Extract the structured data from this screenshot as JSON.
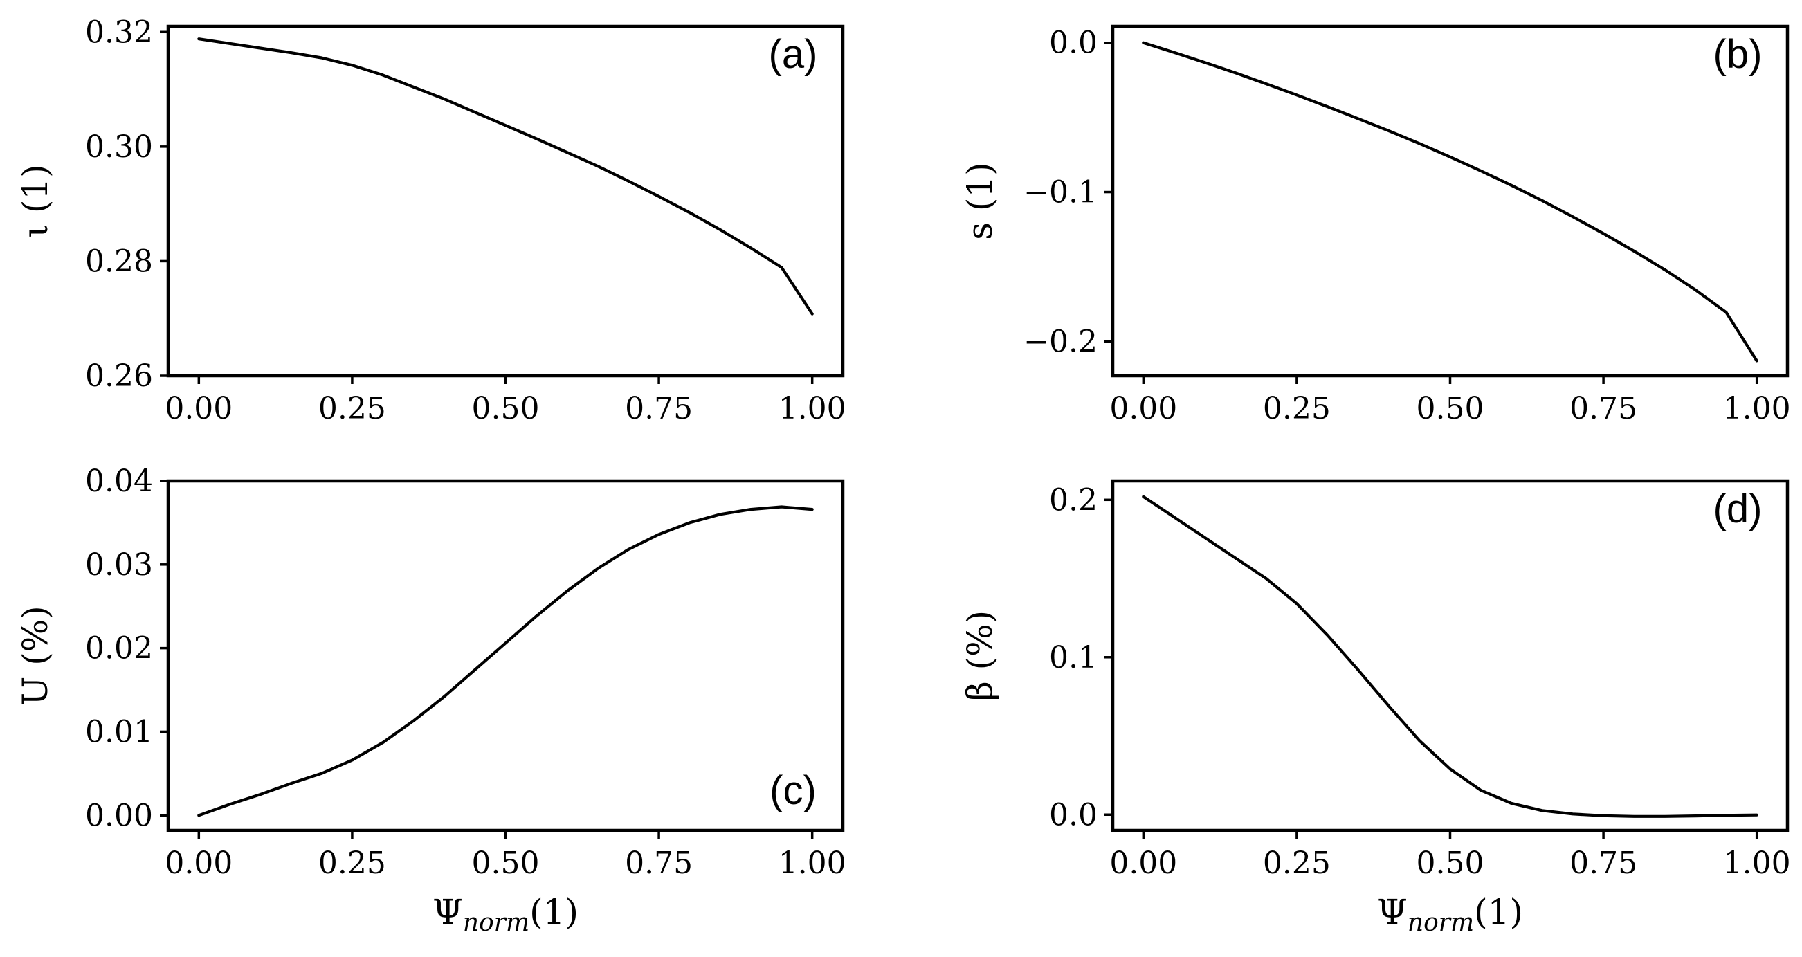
{
  "chart_data": [
    {
      "type": "line",
      "panel_label": "(a)",
      "ylabel": "ι (1)",
      "xlabel": "",
      "xlim": [
        -0.05,
        1.05
      ],
      "ylim": [
        0.26,
        0.321
      ],
      "xticks": [
        0.0,
        0.25,
        0.5,
        0.75,
        1.0
      ],
      "xtick_labels": [
        "0.00",
        "0.25",
        "0.50",
        "0.75",
        "1.00"
      ],
      "yticks": [
        0.26,
        0.28,
        0.3,
        0.32
      ],
      "ytick_labels": [
        "0.26",
        "0.28",
        "0.30",
        "0.32"
      ],
      "label_corner": "top-right",
      "x": [
        0.0,
        0.05,
        0.1,
        0.15,
        0.2,
        0.25,
        0.3,
        0.35,
        0.4,
        0.45,
        0.5,
        0.55,
        0.6,
        0.65,
        0.7,
        0.75,
        0.8,
        0.85,
        0.9,
        0.95,
        1.0
      ],
      "y": [
        0.3188,
        0.318,
        0.3172,
        0.3164,
        0.3155,
        0.3142,
        0.3125,
        0.3104,
        0.3083,
        0.306,
        0.3037,
        0.3014,
        0.299,
        0.2966,
        0.294,
        0.2913,
        0.2885,
        0.2855,
        0.2823,
        0.2789,
        0.2708
      ]
    },
    {
      "type": "line",
      "panel_label": "(b)",
      "ylabel": "s (1)",
      "xlabel": "",
      "xlim": [
        -0.05,
        1.05
      ],
      "ylim": [
        -0.223,
        0.011
      ],
      "xticks": [
        0.0,
        0.25,
        0.5,
        0.75,
        1.0
      ],
      "xtick_labels": [
        "0.00",
        "0.25",
        "0.50",
        "0.75",
        "1.00"
      ],
      "yticks": [
        0.0,
        -0.1,
        -0.2
      ],
      "ytick_labels": [
        "0.0",
        "−0.1",
        "−0.2"
      ],
      "label_corner": "top-right",
      "x": [
        0.0,
        0.05,
        0.1,
        0.15,
        0.2,
        0.25,
        0.3,
        0.35,
        0.4,
        0.45,
        0.5,
        0.55,
        0.6,
        0.65,
        0.7,
        0.75,
        0.8,
        0.85,
        0.9,
        0.95,
        1.0
      ],
      "y": [
        0.0,
        -0.0065,
        -0.0132,
        -0.0202,
        -0.0275,
        -0.035,
        -0.0428,
        -0.0508,
        -0.059,
        -0.0675,
        -0.0765,
        -0.0858,
        -0.0955,
        -0.1057,
        -0.1165,
        -0.1278,
        -0.1396,
        -0.152,
        -0.1655,
        -0.1805,
        -0.213
      ]
    },
    {
      "type": "line",
      "panel_label": "(c)",
      "ylabel": "U (%)",
      "xlabel": "Ψnorm(1)",
      "xlim": [
        -0.05,
        1.05
      ],
      "ylim": [
        -0.0018,
        0.04
      ],
      "xticks": [
        0.0,
        0.25,
        0.5,
        0.75,
        1.0
      ],
      "xtick_labels": [
        "0.00",
        "0.25",
        "0.50",
        "0.75",
        "1.00"
      ],
      "yticks": [
        0.0,
        0.01,
        0.02,
        0.03,
        0.04
      ],
      "ytick_labels": [
        "0.00",
        "0.01",
        "0.02",
        "0.03",
        "0.04"
      ],
      "label_corner": "bottom-right",
      "x": [
        0.0,
        0.05,
        0.1,
        0.15,
        0.2,
        0.25,
        0.3,
        0.35,
        0.4,
        0.45,
        0.5,
        0.55,
        0.6,
        0.65,
        0.7,
        0.75,
        0.8,
        0.85,
        0.9,
        0.95,
        1.0
      ],
      "y": [
        0.0,
        0.0013,
        0.0025,
        0.0038,
        0.005,
        0.0066,
        0.0087,
        0.0113,
        0.0142,
        0.0174,
        0.0206,
        0.0238,
        0.0268,
        0.0295,
        0.0318,
        0.0336,
        0.035,
        0.036,
        0.0366,
        0.0369,
        0.0366
      ]
    },
    {
      "type": "line",
      "panel_label": "(d)",
      "ylabel": "β (%)",
      "xlabel": "Ψnorm(1)",
      "xlim": [
        -0.05,
        1.05
      ],
      "ylim": [
        -0.01,
        0.212
      ],
      "xticks": [
        0.0,
        0.25,
        0.5,
        0.75,
        1.0
      ],
      "xtick_labels": [
        "0.00",
        "0.25",
        "0.50",
        "0.75",
        "1.00"
      ],
      "yticks": [
        0.0,
        0.1,
        0.2
      ],
      "ytick_labels": [
        "0.0",
        "0.1",
        "0.2"
      ],
      "label_corner": "top-right",
      "x": [
        0.0,
        0.05,
        0.1,
        0.15,
        0.2,
        0.25,
        0.3,
        0.35,
        0.4,
        0.45,
        0.5,
        0.55,
        0.6,
        0.65,
        0.7,
        0.75,
        0.8,
        0.85,
        0.9,
        0.95,
        1.0
      ],
      "y": [
        0.202,
        0.189,
        0.176,
        0.163,
        0.15,
        0.134,
        0.114,
        0.092,
        0.069,
        0.047,
        0.029,
        0.0155,
        0.0072,
        0.0026,
        0.0004,
        -0.0007,
        -0.0011,
        -0.0011,
        -0.0008,
        -0.0004,
        -0.0002
      ]
    }
  ]
}
